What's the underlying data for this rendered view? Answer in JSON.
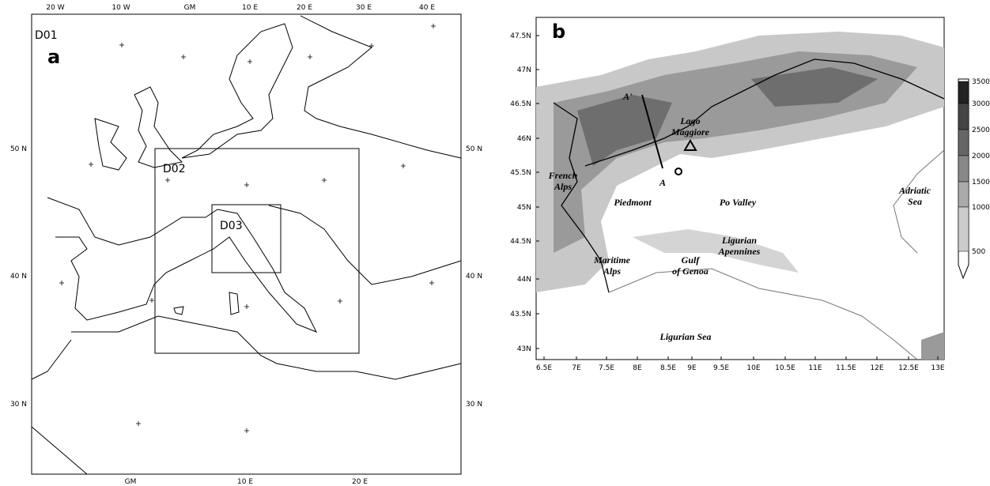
{
  "panel_a": {
    "label": "a",
    "domains": [
      "D01",
      "D02",
      "D03"
    ],
    "top_ticks": [
      "20 W",
      "10 W",
      "GM",
      "10 E",
      "20 E",
      "30 E",
      "40 E"
    ],
    "bottom_ticks": [
      "GM",
      "10 E",
      "20 E"
    ],
    "left_ticks": [
      "50 N",
      "40 N",
      "30 N"
    ],
    "right_ticks": [
      "50 N",
      "40 N",
      "30 N"
    ]
  },
  "panel_b": {
    "label": "b",
    "y_ticks": [
      "47.5N",
      "47N",
      "46.5N",
      "46N",
      "45.5N",
      "45N",
      "44.5N",
      "44N",
      "43.5N",
      "43N"
    ],
    "x_ticks": [
      "6.5E",
      "7E",
      "7.5E",
      "8E",
      "8.5E",
      "9E",
      "9.5E",
      "10E",
      "10.5E",
      "11E",
      "11.5E",
      "12E",
      "12.5E",
      "13E"
    ],
    "places": [
      [
        "French",
        "Alps"
      ],
      [
        "Piedmont"
      ],
      [
        "Po Valley"
      ],
      [
        "Lago",
        "Maggiore"
      ],
      [
        "Ligurian",
        "Apennines"
      ],
      [
        "Maritime",
        "Alps"
      ],
      [
        "Gulf",
        "of Genoa"
      ],
      [
        "Ligurian Sea"
      ],
      [
        "Adriatic",
        "Sea"
      ]
    ],
    "section": [
      "A'",
      "A"
    ],
    "colorbar": [
      "3500",
      "3000",
      "2500",
      "2000",
      "1500",
      "1000",
      "500"
    ]
  }
}
